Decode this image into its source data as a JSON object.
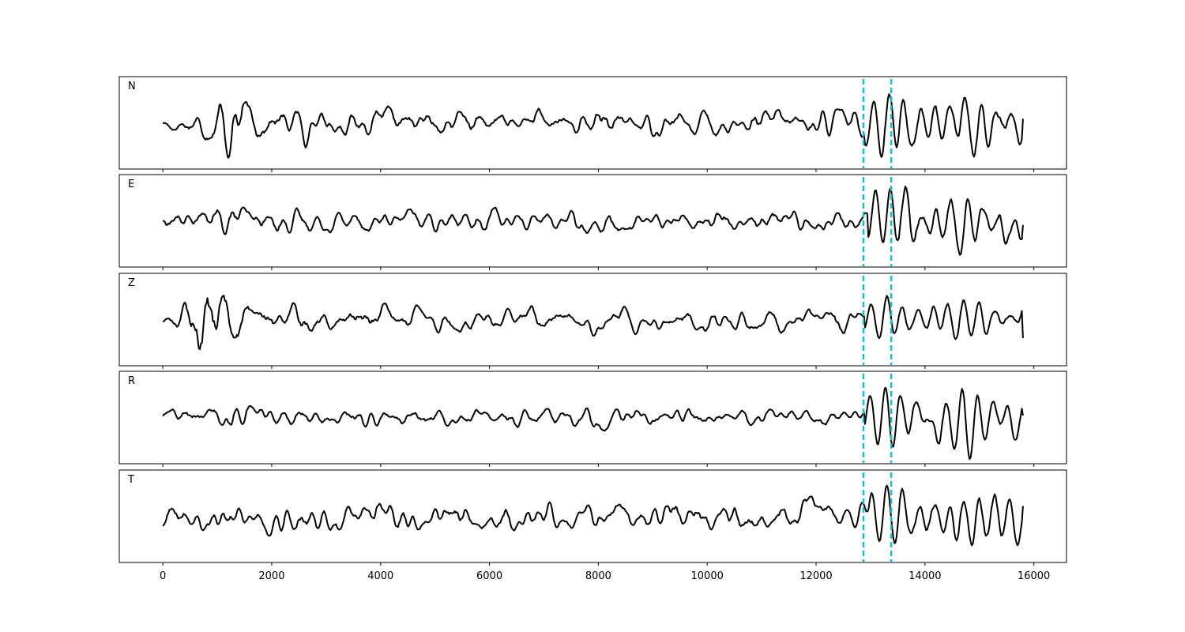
{
  "chart_data": {
    "type": "line",
    "title": "",
    "xlabel": "",
    "ylabel": "",
    "xlim": [
      -800,
      16600
    ],
    "xticks": [
      0,
      2000,
      4000,
      6000,
      8000,
      10000,
      12000,
      14000,
      16000
    ],
    "xtick_labels": [
      "0",
      "2000",
      "4000",
      "6000",
      "8000",
      "10000",
      "12000",
      "14000",
      "16000"
    ],
    "grid": false,
    "legend": "none",
    "markers": {
      "color": "#17becf",
      "style": "dashed",
      "x": [
        12870,
        13380
      ]
    },
    "trace_color": "#000000",
    "panels": [
      {
        "label": "N",
        "x_start": 0,
        "x_end": 15800,
        "noise_amplitude": 0.25,
        "bursts": [
          {
            "x": 1260,
            "amplitude": 0.75
          },
          {
            "x": 2500,
            "amplitude": 0.4
          }
        ],
        "event_onset": 12900,
        "event_amplitude": 0.85,
        "end_value": 0.1
      },
      {
        "label": "E",
        "x_start": 0,
        "x_end": 15800,
        "noise_amplitude": 0.2,
        "bursts": [
          {
            "x": 1200,
            "amplitude": 0.3
          }
        ],
        "event_onset": 12950,
        "event_amplitude": 0.9,
        "end_value": -0.1
      },
      {
        "label": "Z",
        "x_start": 0,
        "x_end": 15800,
        "noise_amplitude": 0.25,
        "bursts": [
          {
            "x": 800,
            "amplitude": 0.95
          },
          {
            "x": 1300,
            "amplitude": 0.6
          }
        ],
        "event_onset": 12900,
        "event_amplitude": 0.55,
        "end_value": -0.45
      },
      {
        "label": "R",
        "x_start": 0,
        "x_end": 15800,
        "noise_amplitude": 0.2,
        "bursts": [
          {
            "x": 1200,
            "amplitude": 0.35
          }
        ],
        "event_onset": 12900,
        "event_amplitude": 0.9,
        "end_value": 0.05
      },
      {
        "label": "T",
        "x_start": 0,
        "x_end": 15800,
        "noise_amplitude": 0.3,
        "bursts": [
          {
            "x": 4100,
            "amplitude": 0.4
          }
        ],
        "event_onset": 12950,
        "event_amplitude": 0.85,
        "end_value": 0.25
      }
    ]
  }
}
